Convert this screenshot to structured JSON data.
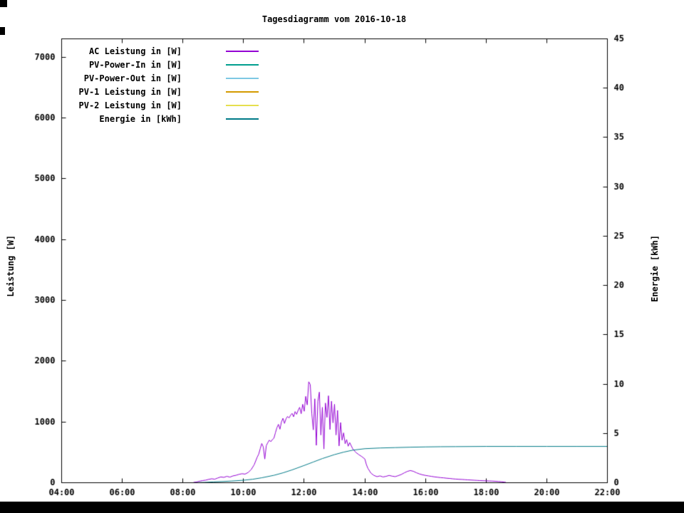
{
  "chart_data": {
    "type": "line",
    "title": "Tagesdiagramm vom 2016-10-18",
    "ylabel_left": "Leistung [W]",
    "ylabel_right": "Energie [kWh]",
    "grid": false,
    "legend_position": "top-left",
    "x_axis": {
      "min": 4,
      "max": 22,
      "ticks": [
        {
          "value": 4,
          "label": "04:00"
        },
        {
          "value": 6,
          "label": "06:00"
        },
        {
          "value": 8,
          "label": "08:00"
        },
        {
          "value": 10,
          "label": "10:00"
        },
        {
          "value": 12,
          "label": "12:00"
        },
        {
          "value": 14,
          "label": "14:00"
        },
        {
          "value": 16,
          "label": "16:00"
        },
        {
          "value": 18,
          "label": "18:00"
        },
        {
          "value": 20,
          "label": "20:00"
        },
        {
          "value": 22,
          "label": "22:00"
        }
      ]
    },
    "y_left": {
      "min": 0,
      "max": 7300,
      "ticks": [
        {
          "value": 0,
          "label": "0"
        },
        {
          "value": 1000,
          "label": "1000"
        },
        {
          "value": 2000,
          "label": "2000"
        },
        {
          "value": 3000,
          "label": "3000"
        },
        {
          "value": 4000,
          "label": "4000"
        },
        {
          "value": 5000,
          "label": "5000"
        },
        {
          "value": 6000,
          "label": "6000"
        },
        {
          "value": 7000,
          "label": "7000"
        }
      ]
    },
    "y_right": {
      "min": 0,
      "max": 45,
      "ticks": [
        {
          "value": 0,
          "label": "0"
        },
        {
          "value": 5,
          "label": "5"
        },
        {
          "value": 10,
          "label": "10"
        },
        {
          "value": 15,
          "label": "15"
        },
        {
          "value": 20,
          "label": "20"
        },
        {
          "value": 25,
          "label": "25"
        },
        {
          "value": 30,
          "label": "30"
        },
        {
          "value": 35,
          "label": "35"
        },
        {
          "value": 40,
          "label": "40"
        },
        {
          "value": 45,
          "label": "45"
        }
      ]
    },
    "series": [
      {
        "name": "AC Leistung in [W]",
        "color": "#9400d3",
        "axis": "left",
        "points": [
          [
            8.35,
            5
          ],
          [
            8.45,
            12
          ],
          [
            8.55,
            25
          ],
          [
            8.65,
            35
          ],
          [
            8.75,
            42
          ],
          [
            8.85,
            55
          ],
          [
            8.95,
            65
          ],
          [
            9.05,
            58
          ],
          [
            9.15,
            78
          ],
          [
            9.25,
            95
          ],
          [
            9.35,
            88
          ],
          [
            9.45,
            105
          ],
          [
            9.55,
            92
          ],
          [
            9.65,
            112
          ],
          [
            9.75,
            122
          ],
          [
            9.85,
            138
          ],
          [
            9.95,
            148
          ],
          [
            10.05,
            142
          ],
          [
            10.15,
            168
          ],
          [
            10.25,
            215
          ],
          [
            10.35,
            295
          ],
          [
            10.45,
            420
          ],
          [
            10.5,
            470
          ],
          [
            10.55,
            560
          ],
          [
            10.6,
            645
          ],
          [
            10.65,
            590
          ],
          [
            10.7,
            390
          ],
          [
            10.75,
            610
          ],
          [
            10.8,
            660
          ],
          [
            10.85,
            700
          ],
          [
            10.9,
            675
          ],
          [
            10.95,
            710
          ],
          [
            11,
            730
          ],
          [
            11.05,
            820
          ],
          [
            11.1,
            905
          ],
          [
            11.15,
            960
          ],
          [
            11.2,
            880
          ],
          [
            11.25,
            1000
          ],
          [
            11.3,
            1060
          ],
          [
            11.35,
            975
          ],
          [
            11.4,
            1050
          ],
          [
            11.45,
            1090
          ],
          [
            11.5,
            1065
          ],
          [
            11.55,
            1110
          ],
          [
            11.6,
            1140
          ],
          [
            11.65,
            1085
          ],
          [
            11.7,
            1170
          ],
          [
            11.75,
            1125
          ],
          [
            11.8,
            1190
          ],
          [
            11.85,
            1240
          ],
          [
            11.9,
            1135
          ],
          [
            11.95,
            1290
          ],
          [
            12,
            1175
          ],
          [
            12.05,
            1420
          ],
          [
            12.1,
            1280
          ],
          [
            12.15,
            1660
          ],
          [
            12.2,
            1615
          ],
          [
            12.25,
            1140
          ],
          [
            12.3,
            870
          ],
          [
            12.35,
            1380
          ],
          [
            12.4,
            615
          ],
          [
            12.45,
            1340
          ],
          [
            12.5,
            1490
          ],
          [
            12.55,
            785
          ],
          [
            12.6,
            1240
          ],
          [
            12.65,
            555
          ],
          [
            12.7,
            1310
          ],
          [
            12.75,
            1075
          ],
          [
            12.8,
            1430
          ],
          [
            12.85,
            875
          ],
          [
            12.9,
            1340
          ],
          [
            12.95,
            985
          ],
          [
            13,
            1290
          ],
          [
            13.05,
            785
          ],
          [
            13.1,
            1190
          ],
          [
            13.15,
            605
          ],
          [
            13.2,
            990
          ],
          [
            13.25,
            700
          ],
          [
            13.3,
            820
          ],
          [
            13.35,
            640
          ],
          [
            13.4,
            710
          ],
          [
            13.45,
            600
          ],
          [
            13.5,
            660
          ],
          [
            13.6,
            558
          ],
          [
            13.7,
            500
          ],
          [
            13.8,
            462
          ],
          [
            13.9,
            430
          ],
          [
            14,
            390
          ],
          [
            14.05,
            300
          ],
          [
            14.1,
            238
          ],
          [
            14.2,
            158
          ],
          [
            14.3,
            120
          ],
          [
            14.4,
            100
          ],
          [
            14.5,
            112
          ],
          [
            14.6,
            95
          ],
          [
            14.7,
            105
          ],
          [
            14.8,
            120
          ],
          [
            14.9,
            108
          ],
          [
            15,
            100
          ],
          [
            15.1,
            116
          ],
          [
            15.2,
            135
          ],
          [
            15.3,
            162
          ],
          [
            15.4,
            186
          ],
          [
            15.5,
            200
          ],
          [
            15.6,
            188
          ],
          [
            15.7,
            164
          ],
          [
            15.8,
            145
          ],
          [
            15.9,
            130
          ],
          [
            16,
            120
          ],
          [
            16.1,
            112
          ],
          [
            16.2,
            104
          ],
          [
            16.3,
            96
          ],
          [
            16.4,
            90
          ],
          [
            16.5,
            84
          ],
          [
            16.6,
            80
          ],
          [
            16.7,
            74
          ],
          [
            16.8,
            70
          ],
          [
            16.9,
            64
          ],
          [
            17,
            60
          ],
          [
            17.1,
            56
          ],
          [
            17.2,
            54
          ],
          [
            17.3,
            50
          ],
          [
            17.4,
            47
          ],
          [
            17.5,
            44
          ],
          [
            17.6,
            41
          ],
          [
            17.7,
            38
          ],
          [
            17.8,
            35
          ],
          [
            17.9,
            33
          ],
          [
            18,
            31
          ],
          [
            18.1,
            29
          ],
          [
            18.2,
            27
          ],
          [
            18.3,
            24
          ],
          [
            18.4,
            20
          ],
          [
            18.5,
            16
          ],
          [
            18.6,
            10
          ],
          [
            18.65,
            6
          ]
        ]
      },
      {
        "name": "PV-Power-In in [W]",
        "color": "#009e8e",
        "axis": "left",
        "points": []
      },
      {
        "name": "PV-Power-Out in [W]",
        "color": "#7ec8e3",
        "axis": "left",
        "points": []
      },
      {
        "name": "PV-1 Leistung in [W]",
        "color": "#d49a00",
        "axis": "left",
        "points": []
      },
      {
        "name": "PV-2 Leistung in [W]",
        "color": "#e6df4e",
        "axis": "left",
        "points": []
      },
      {
        "name": "Energie in [kWh]",
        "color": "#007a87",
        "axis": "right",
        "points": [
          [
            8.35,
            0
          ],
          [
            8.7,
            0.03
          ],
          [
            9,
            0.08
          ],
          [
            9.3,
            0.12
          ],
          [
            9.6,
            0.17
          ],
          [
            10,
            0.25
          ],
          [
            10.3,
            0.35
          ],
          [
            10.6,
            0.5
          ],
          [
            11,
            0.75
          ],
          [
            11.3,
            1
          ],
          [
            11.6,
            1.3
          ],
          [
            12,
            1.75
          ],
          [
            12.3,
            2.1
          ],
          [
            12.6,
            2.45
          ],
          [
            13,
            2.85
          ],
          [
            13.3,
            3.1
          ],
          [
            13.6,
            3.3
          ],
          [
            14,
            3.45
          ],
          [
            14.5,
            3.52
          ],
          [
            15,
            3.56
          ],
          [
            15.5,
            3.6
          ],
          [
            16,
            3.63
          ],
          [
            16.5,
            3.65
          ],
          [
            17,
            3.66
          ],
          [
            17.5,
            3.67
          ],
          [
            18,
            3.68
          ],
          [
            19,
            3.68
          ],
          [
            20,
            3.68
          ],
          [
            21,
            3.68
          ],
          [
            22,
            3.68
          ]
        ]
      }
    ]
  }
}
